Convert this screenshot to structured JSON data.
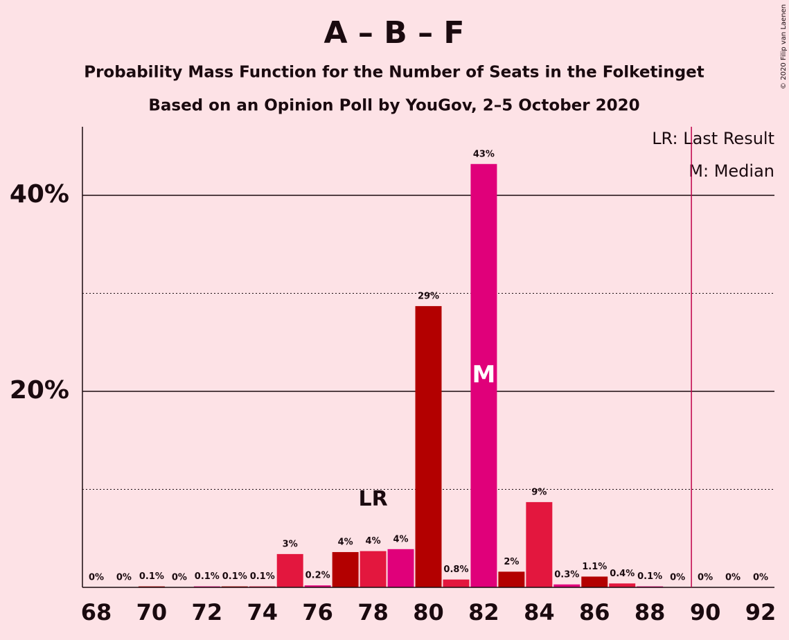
{
  "chart_data": {
    "type": "bar",
    "title": "A – B – F",
    "subtitle": "Probability Mass Function for the Number of Seats in the Folketinget",
    "subtitle2": "Based on an Opinion Poll by YouGov, 2–5 October 2020",
    "copyright": "© 2020 Filip van Laenen",
    "legend": [
      "LR: Last Result",
      "M: Median"
    ],
    "x": [
      68,
      69,
      70,
      71,
      72,
      73,
      74,
      75,
      76,
      77,
      78,
      79,
      80,
      81,
      82,
      83,
      84,
      85,
      86,
      87,
      88,
      89,
      90,
      91,
      92
    ],
    "values": [
      0,
      0,
      0.1,
      0,
      0.1,
      0.1,
      0.1,
      3.4,
      0.2,
      3.6,
      3.7,
      3.9,
      28.7,
      0.8,
      43.2,
      1.6,
      8.7,
      0.3,
      1.1,
      0.4,
      0.1,
      0,
      0,
      0,
      0
    ],
    "value_labels": [
      "0%",
      "0%",
      "0.1%",
      "0%",
      "0.1%",
      "0.1%",
      "0.1%",
      "3%",
      "0.2%",
      "4%",
      "4%",
      "4%",
      "29%",
      "0.8%",
      "43%",
      "2%",
      "9%",
      "0.3%",
      "1.1%",
      "0.4%",
      "0.1%",
      "0%",
      "0%",
      "0%",
      "0%"
    ],
    "colors": [
      "#e3173e",
      "#e0007a",
      "#b30000",
      "#e3173e",
      "#e0007a",
      "#b30000",
      "#e3173e",
      "#e3173e",
      "#e0007a",
      "#b30000",
      "#e3173e",
      "#e0007a",
      "#b30000",
      "#e3173e",
      "#e0007a",
      "#b30000",
      "#e3173e",
      "#e0007a",
      "#b30000",
      "#e3173e",
      "#e0007a",
      "#b30000",
      "#e3173e",
      "#e0007a",
      "#b30000"
    ],
    "xlim": [
      67.5,
      92.5
    ],
    "xticks": [
      68,
      70,
      72,
      74,
      76,
      78,
      80,
      82,
      84,
      86,
      88,
      90,
      92
    ],
    "ylim": [
      0,
      47
    ],
    "yticks": [
      {
        "value": 20,
        "label": "20%"
      },
      {
        "value": 40,
        "label": "40%"
      }
    ],
    "minor_grid": [
      10,
      30
    ],
    "threshold_line": 89.5,
    "last_result": {
      "x": 78,
      "label": "LR"
    },
    "median": {
      "x": 82,
      "label": "M"
    }
  }
}
